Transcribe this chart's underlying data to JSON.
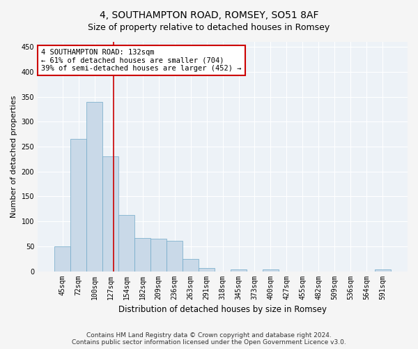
{
  "title": "4, SOUTHAMPTON ROAD, ROMSEY, SO51 8AF",
  "subtitle": "Size of property relative to detached houses in Romsey",
  "xlabel": "Distribution of detached houses by size in Romsey",
  "ylabel": "Number of detached properties",
  "categories": [
    "45sqm",
    "72sqm",
    "100sqm",
    "127sqm",
    "154sqm",
    "182sqm",
    "209sqm",
    "236sqm",
    "263sqm",
    "291sqm",
    "318sqm",
    "345sqm",
    "373sqm",
    "400sqm",
    "427sqm",
    "455sqm",
    "482sqm",
    "509sqm",
    "536sqm",
    "564sqm",
    "591sqm"
  ],
  "values": [
    50,
    265,
    340,
    230,
    113,
    66,
    65,
    61,
    24,
    7,
    0,
    4,
    0,
    3,
    0,
    0,
    0,
    0,
    0,
    0,
    4
  ],
  "bar_color": "#c9d9e8",
  "bar_edge_color": "#6fa8c8",
  "annotation_title": "4 SOUTHAMPTON ROAD: 132sqm",
  "annotation_line1": "← 61% of detached houses are smaller (704)",
  "annotation_line2": "39% of semi-detached houses are larger (452) →",
  "annotation_box_facecolor": "#ffffff",
  "annotation_box_edgecolor": "#cc0000",
  "vline_color": "#cc0000",
  "vline_x": 3.18,
  "ylim": [
    0,
    460
  ],
  "yticks": [
    0,
    50,
    100,
    150,
    200,
    250,
    300,
    350,
    400,
    450
  ],
  "background_color": "#edf2f7",
  "grid_color": "#ffffff",
  "footer_line1": "Contains HM Land Registry data © Crown copyright and database right 2024.",
  "footer_line2": "Contains public sector information licensed under the Open Government Licence v3.0.",
  "title_fontsize": 10,
  "subtitle_fontsize": 9,
  "xlabel_fontsize": 8.5,
  "ylabel_fontsize": 8,
  "tick_fontsize": 7,
  "annot_fontsize": 7.5,
  "footer_fontsize": 6.5
}
